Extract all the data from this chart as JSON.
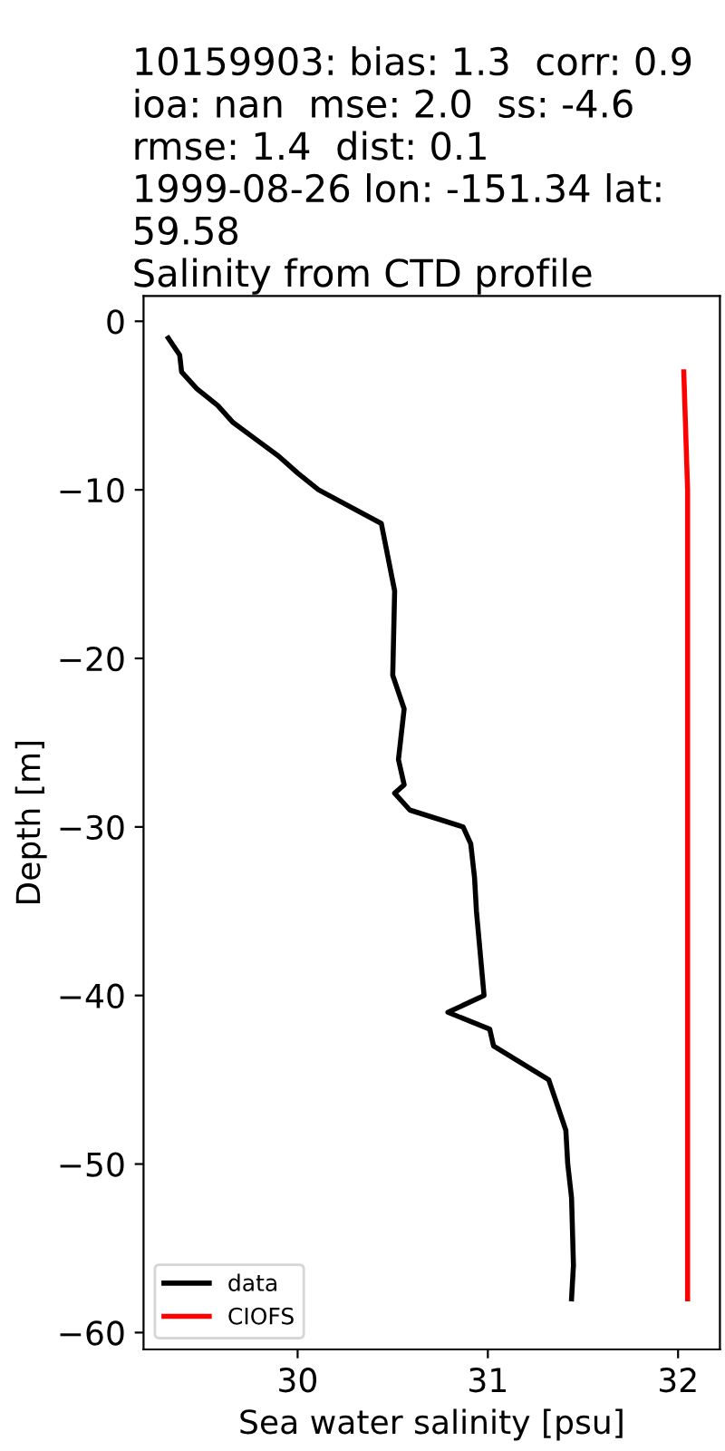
{
  "chart_data": {
    "type": "line",
    "title": "10159903: bias: 1.3  corr: 0.9  ioa: nan  mse: 2.0  ss: -4.6  rmse: 1.4  dist: 0.1\n1999-08-26 lon: -151.34 lat: 59.58\nSalinity from CTD profile",
    "xlabel": "Sea water salinity [psu]",
    "ylabel": "Depth [m]",
    "series": [
      {
        "name": "data",
        "color": "#000000",
        "x": [
          29.32,
          29.38,
          29.39,
          29.47,
          29.58,
          29.66,
          29.78,
          29.9,
          30.0,
          30.11,
          30.44,
          30.51,
          30.5,
          30.56,
          30.53,
          30.56,
          30.51,
          30.59,
          30.87,
          30.91,
          30.93,
          30.94,
          30.98,
          30.79,
          31.01,
          31.03,
          31.32,
          31.41,
          31.42,
          31.44,
          31.45,
          31.44
        ],
        "values": [
          -1,
          -2,
          -3,
          -4,
          -5,
          -6,
          -7,
          -8,
          -9,
          -10,
          -12,
          -16,
          -21,
          -23,
          -26,
          -27.5,
          -28,
          -29,
          -30,
          -31,
          -33,
          -35,
          -40,
          -41,
          -42,
          -43,
          -45,
          -48,
          -50,
          -52,
          -56,
          -58
        ]
      },
      {
        "name": "CIOFS",
        "color": "#ff0000",
        "x": [
          32.03,
          32.05,
          32.05
        ],
        "values": [
          -3,
          -10,
          -58
        ]
      }
    ],
    "xlim": [
      29.19,
      32.22
    ],
    "ylim": [
      -61,
      1.5
    ],
    "xticks": [
      30,
      31,
      32
    ],
    "yticks": [
      0,
      -10,
      -20,
      -30,
      -40,
      -50,
      -60
    ],
    "grid": false,
    "legend": "bottom left",
    "marker": "none",
    "line_style": "solid"
  }
}
